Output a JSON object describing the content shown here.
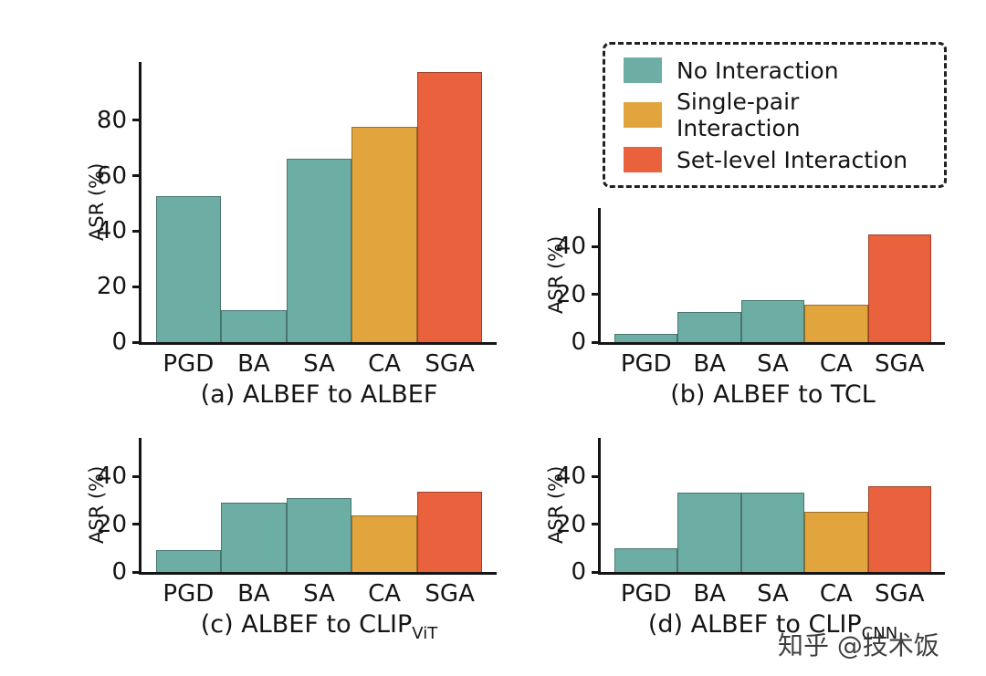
{
  "palette": {
    "no_interaction": "#6cada4",
    "single_pair": "#e2a43c",
    "set_level": "#ea613d",
    "axis": "#151515",
    "background": "#ffffff"
  },
  "legend": {
    "position": "top-right-outside",
    "border": "dashed",
    "items": [
      {
        "label": "No Interaction",
        "color_key": "no_interaction"
      },
      {
        "label": "Single-pair Interaction",
        "color_key": "single_pair"
      },
      {
        "label": "Set-level Interaction",
        "color_key": "set_level"
      }
    ]
  },
  "watermark": "知乎 @技术饭",
  "chart_data": [
    {
      "type": "bar",
      "caption": {
        "main": "(a) ALBEF to ALBEF",
        "sub": ""
      },
      "ylabel": "ASR (%)",
      "categories": [
        "PGD",
        "BA",
        "SA",
        "CA",
        "SGA"
      ],
      "values": [
        52.5,
        11.5,
        66,
        77.5,
        97.5
      ],
      "series": [
        "no_interaction",
        "no_interaction",
        "no_interaction",
        "single_pair",
        "set_level"
      ],
      "yticks": [
        0,
        20,
        40,
        60,
        80
      ],
      "ylim": [
        0,
        101
      ],
      "grid": false
    },
    {
      "type": "bar",
      "caption": {
        "main": "(b) ALBEF to TCL",
        "sub": ""
      },
      "ylabel": "ASR (%)",
      "categories": [
        "PGD",
        "BA",
        "SA",
        "CA",
        "SGA"
      ],
      "values": [
        3.5,
        12.5,
        17.5,
        15.5,
        45
      ],
      "series": [
        "no_interaction",
        "no_interaction",
        "no_interaction",
        "single_pair",
        "set_level"
      ],
      "yticks": [
        0,
        20,
        40
      ],
      "ylim": [
        0,
        56
      ],
      "grid": false
    },
    {
      "type": "bar",
      "caption": {
        "main": "(c) ALBEF to CLIP",
        "sub": "ViT"
      },
      "ylabel": "ASR (%)",
      "categories": [
        "PGD",
        "BA",
        "SA",
        "CA",
        "SGA"
      ],
      "values": [
        9,
        29,
        31,
        23.5,
        33.5
      ],
      "series": [
        "no_interaction",
        "no_interaction",
        "no_interaction",
        "single_pair",
        "set_level"
      ],
      "yticks": [
        0,
        20,
        40
      ],
      "ylim": [
        0,
        56
      ],
      "grid": false
    },
    {
      "type": "bar",
      "caption": {
        "main": "(d) ALBEF to CLIP",
        "sub": "CNN"
      },
      "ylabel": "ASR (%)",
      "categories": [
        "PGD",
        "BA",
        "SA",
        "CA",
        "SGA"
      ],
      "values": [
        10,
        33,
        33,
        25,
        36
      ],
      "series": [
        "no_interaction",
        "no_interaction",
        "no_interaction",
        "single_pair",
        "set_level"
      ],
      "yticks": [
        0,
        20,
        40
      ],
      "ylim": [
        0,
        56
      ],
      "grid": false
    }
  ]
}
